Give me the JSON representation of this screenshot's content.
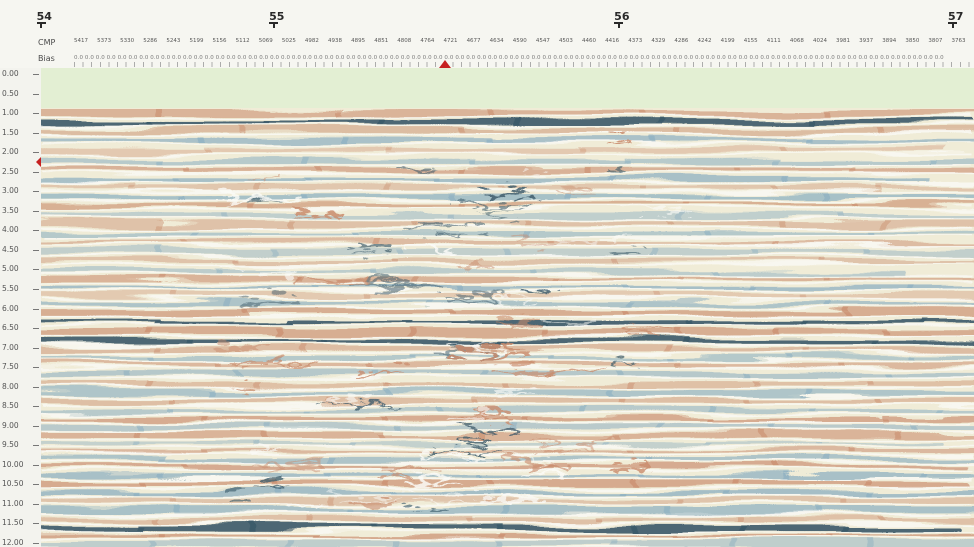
{
  "wells": [
    {
      "label": "54",
      "at": 0.005
    },
    {
      "label": "55",
      "at": 0.255
    },
    {
      "label": "56",
      "at": 0.626
    },
    {
      "label": "57",
      "at": 0.985
    }
  ],
  "rows": {
    "cmp_label": "CMP",
    "bias_label": "Bias"
  },
  "cmp_values": [
    "5417",
    "5373",
    "5330",
    "5286",
    "5243",
    "5199",
    "5156",
    "5112",
    "5069",
    "5025",
    "4982",
    "4938",
    "4895",
    "4851",
    "4808",
    "4764",
    "4721",
    "4677",
    "4634",
    "4590",
    "4547",
    "4503",
    "4460",
    "4416",
    "4373",
    "4329",
    "4286",
    "4242",
    "4199",
    "4155",
    "4111",
    "4068",
    "4024",
    "3981",
    "3937",
    "3894",
    "3850",
    "3807",
    "3763"
  ],
  "bias_values": "0.0 0.0 0.0 0.0 0.0 0.0 0.0 0.0 0.0 0.0 0.0 0.0 0.0 0.0 0.0 0.0 0.0 0.0 0.0 0.0 0.0 0.0 0.0 0.0 0.0 0.0 0.0 0.0 0.0 0.0 0.0 0.0 0.0 0.0 0.0 0.0 0.0 0.0 0.0 0.0 0.0 0.0 0.0 0.0 0.0 0.0 0.0 0.0 0.0 0.0 0.0 0.0 0.0 0.0 0.0 0.0 0.0 0.0 0.0 0.0 0.0 0.0 0.0 0.0 0.0 0.0 0.0 0.0 0.0 0.0 0.0 0.0 0.0 0.0 0.0 0.0 0.0 0.0 0.0 0.0",
  "time_labels": [
    "0.00",
    "0.50",
    "1.00",
    "1.50",
    "2.00",
    "2.50",
    "3.00",
    "3.50",
    "4.00",
    "4.50",
    "5.00",
    "5.50",
    "6.00",
    "6.50",
    "7.00",
    "7.50",
    "8.00",
    "8.50",
    "9.00",
    "9.50",
    "10.00",
    "10.50",
    "11.00",
    "11.50",
    "12.00"
  ],
  "colors": {
    "top_fill": "#e3efd3",
    "background": "#f0ecd7",
    "trough": "#8fb1c2",
    "trough_dark": "#3c5a6a",
    "peak": "#c98b6c",
    "peak_dark": "#9a5a44",
    "white": "#fbfbf8",
    "marker": "#c62020"
  },
  "icons": {
    "cursor": "red-triangle-marker",
    "side": "red-side-marker",
    "well": "well-tick-icon"
  }
}
